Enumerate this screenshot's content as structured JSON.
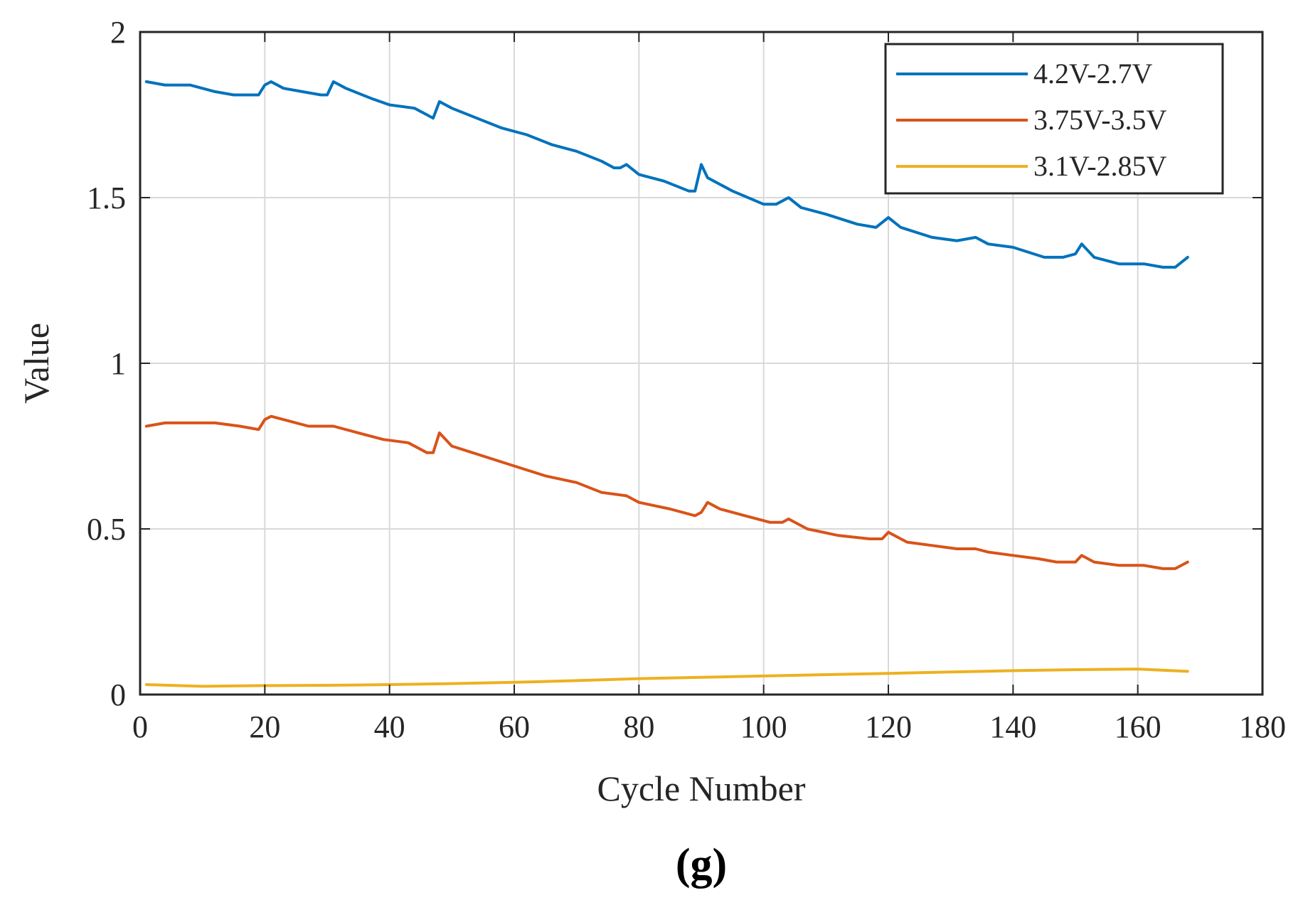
{
  "chart_data": {
    "type": "line",
    "title": "",
    "caption": "(g)",
    "xlabel": "Cycle Number",
    "ylabel": "Value",
    "xlim": [
      0,
      180
    ],
    "ylim": [
      0,
      2
    ],
    "xticks": [
      0,
      20,
      40,
      60,
      80,
      100,
      120,
      140,
      160,
      180
    ],
    "xtick_labels": [
      "0",
      "20",
      "40",
      "60",
      "80",
      "100",
      "120",
      "140",
      "160",
      "180"
    ],
    "yticks": [
      0,
      0.5,
      1,
      1.5,
      2
    ],
    "ytick_labels": [
      "0",
      "0.5",
      "1",
      "1.5",
      "2"
    ],
    "grid": true,
    "legend_position": "top-right",
    "series": [
      {
        "name": "4.2V-2.7V",
        "color": "#0072BD",
        "points": [
          [
            1,
            1.85
          ],
          [
            4,
            1.84
          ],
          [
            8,
            1.84
          ],
          [
            12,
            1.82
          ],
          [
            15,
            1.81
          ],
          [
            19,
            1.81
          ],
          [
            20,
            1.84
          ],
          [
            21,
            1.85
          ],
          [
            23,
            1.83
          ],
          [
            26,
            1.82
          ],
          [
            29,
            1.81
          ],
          [
            30,
            1.81
          ],
          [
            31,
            1.85
          ],
          [
            33,
            1.83
          ],
          [
            37,
            1.8
          ],
          [
            40,
            1.78
          ],
          [
            44,
            1.77
          ],
          [
            46,
            1.75
          ],
          [
            47,
            1.74
          ],
          [
            48,
            1.79
          ],
          [
            50,
            1.77
          ],
          [
            54,
            1.74
          ],
          [
            58,
            1.71
          ],
          [
            62,
            1.69
          ],
          [
            66,
            1.66
          ],
          [
            70,
            1.64
          ],
          [
            74,
            1.61
          ],
          [
            76,
            1.59
          ],
          [
            77,
            1.59
          ],
          [
            78,
            1.6
          ],
          [
            80,
            1.57
          ],
          [
            84,
            1.55
          ],
          [
            88,
            1.52
          ],
          [
            89,
            1.52
          ],
          [
            90,
            1.6
          ],
          [
            91,
            1.56
          ],
          [
            95,
            1.52
          ],
          [
            100,
            1.48
          ],
          [
            102,
            1.48
          ],
          [
            104,
            1.5
          ],
          [
            106,
            1.47
          ],
          [
            110,
            1.45
          ],
          [
            115,
            1.42
          ],
          [
            118,
            1.41
          ],
          [
            120,
            1.44
          ],
          [
            122,
            1.41
          ],
          [
            127,
            1.38
          ],
          [
            131,
            1.37
          ],
          [
            134,
            1.38
          ],
          [
            136,
            1.36
          ],
          [
            140,
            1.35
          ],
          [
            145,
            1.32
          ],
          [
            148,
            1.32
          ],
          [
            150,
            1.33
          ],
          [
            151,
            1.36
          ],
          [
            153,
            1.32
          ],
          [
            157,
            1.3
          ],
          [
            161,
            1.3
          ],
          [
            164,
            1.29
          ],
          [
            166,
            1.29
          ],
          [
            168,
            1.32
          ]
        ]
      },
      {
        "name": "3.75V-3.5V",
        "color": "#D95319",
        "points": [
          [
            1,
            0.81
          ],
          [
            4,
            0.82
          ],
          [
            8,
            0.82
          ],
          [
            12,
            0.82
          ],
          [
            16,
            0.81
          ],
          [
            19,
            0.8
          ],
          [
            20,
            0.83
          ],
          [
            21,
            0.84
          ],
          [
            23,
            0.83
          ],
          [
            27,
            0.81
          ],
          [
            31,
            0.81
          ],
          [
            35,
            0.79
          ],
          [
            39,
            0.77
          ],
          [
            43,
            0.76
          ],
          [
            46,
            0.73
          ],
          [
            47,
            0.73
          ],
          [
            48,
            0.79
          ],
          [
            50,
            0.75
          ],
          [
            55,
            0.72
          ],
          [
            60,
            0.69
          ],
          [
            65,
            0.66
          ],
          [
            70,
            0.64
          ],
          [
            74,
            0.61
          ],
          [
            78,
            0.6
          ],
          [
            80,
            0.58
          ],
          [
            85,
            0.56
          ],
          [
            89,
            0.54
          ],
          [
            90,
            0.55
          ],
          [
            91,
            0.58
          ],
          [
            93,
            0.56
          ],
          [
            97,
            0.54
          ],
          [
            101,
            0.52
          ],
          [
            103,
            0.52
          ],
          [
            104,
            0.53
          ],
          [
            107,
            0.5
          ],
          [
            112,
            0.48
          ],
          [
            117,
            0.47
          ],
          [
            119,
            0.47
          ],
          [
            120,
            0.49
          ],
          [
            123,
            0.46
          ],
          [
            127,
            0.45
          ],
          [
            131,
            0.44
          ],
          [
            134,
            0.44
          ],
          [
            136,
            0.43
          ],
          [
            140,
            0.42
          ],
          [
            144,
            0.41
          ],
          [
            147,
            0.4
          ],
          [
            150,
            0.4
          ],
          [
            151,
            0.42
          ],
          [
            153,
            0.4
          ],
          [
            157,
            0.39
          ],
          [
            161,
            0.39
          ],
          [
            164,
            0.38
          ],
          [
            166,
            0.38
          ],
          [
            168,
            0.4
          ]
        ]
      },
      {
        "name": "3.1V-2.85V",
        "color": "#EDB120",
        "points": [
          [
            1,
            0.03
          ],
          [
            10,
            0.025
          ],
          [
            20,
            0.027
          ],
          [
            30,
            0.028
          ],
          [
            40,
            0.03
          ],
          [
            50,
            0.033
          ],
          [
            60,
            0.037
          ],
          [
            70,
            0.042
          ],
          [
            80,
            0.048
          ],
          [
            90,
            0.052
          ],
          [
            100,
            0.056
          ],
          [
            110,
            0.06
          ],
          [
            120,
            0.064
          ],
          [
            130,
            0.068
          ],
          [
            140,
            0.072
          ],
          [
            150,
            0.075
          ],
          [
            160,
            0.077
          ],
          [
            168,
            0.07
          ]
        ]
      }
    ]
  }
}
